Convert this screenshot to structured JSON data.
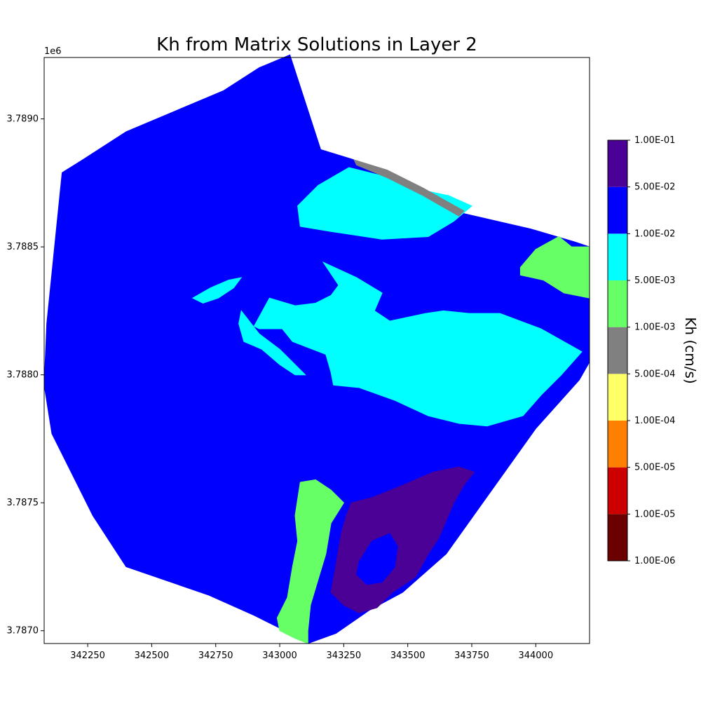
{
  "chart_data": {
    "type": "heatmap",
    "title": "Kh from Matrix Solutions in Layer 2",
    "xlabel": "",
    "ylabel": "",
    "y_offset_label": "1e6",
    "xlim": [
      342080,
      344210
    ],
    "ylim": [
      3786950,
      3789240
    ],
    "x_ticks": [
      342250,
      342500,
      342750,
      343000,
      343250,
      343500,
      343750,
      344000
    ],
    "x_tick_labels": [
      "342250",
      "342500",
      "342750",
      "343000",
      "343250",
      "343500",
      "343750",
      "344000"
    ],
    "y_ticks": [
      3787000,
      3787500,
      3788000,
      3788500,
      3789000
    ],
    "y_tick_labels": [
      "3.7870",
      "3.7875",
      "3.7880",
      "3.7885",
      "3.7890"
    ],
    "colorbar": {
      "label": "Kh (cm/s)",
      "boundaries": [
        "1.00E-06",
        "1.00E-05",
        "5.00E-05",
        "1.00E-04",
        "5.00E-04",
        "1.00E-03",
        "5.00E-03",
        "1.00E-02",
        "5.00E-02",
        "1.00E-01"
      ],
      "colors": [
        "#6b0000",
        "#cc0000",
        "#ff8000",
        "#ffff66",
        "#808080",
        "#66ff66",
        "#00ffff",
        "#0000ff",
        "#4b0096"
      ]
    },
    "zones": [
      {
        "class": "1.00E-02 to 5.00E-02",
        "color": "#0000ff",
        "polygon": [
          [
            342230,
            3788840
          ],
          [
            342400,
            3788950
          ],
          [
            342590,
            3789030
          ],
          [
            342780,
            3789110
          ],
          [
            342920,
            3789200
          ],
          [
            343040,
            3789250
          ],
          [
            343160,
            3788880
          ],
          [
            343290,
            3788840
          ],
          [
            343560,
            3788700
          ],
          [
            343720,
            3788630
          ],
          [
            343980,
            3788570
          ],
          [
            344150,
            3788520
          ],
          [
            344210,
            3788500
          ],
          [
            344210,
            3788050
          ],
          [
            344170,
            3787980
          ],
          [
            344000,
            3787790
          ],
          [
            343800,
            3787510
          ],
          [
            343650,
            3787300
          ],
          [
            343480,
            3787150
          ],
          [
            343350,
            3787080
          ],
          [
            343220,
            3786990
          ],
          [
            343110,
            3786950
          ],
          [
            343020,
            3787000
          ],
          [
            342900,
            3787060
          ],
          [
            342720,
            3787140
          ],
          [
            342400,
            3787250
          ],
          [
            342270,
            3787450
          ],
          [
            342110,
            3787770
          ],
          [
            342080,
            3787960
          ],
          [
            342090,
            3788200
          ],
          [
            342150,
            3788790
          ]
        ]
      },
      {
        "class": "5.00E-03 to 1.00E-02",
        "color": "#00ffff",
        "polygon": [
          [
            343070,
            3788660
          ],
          [
            343150,
            3788740
          ],
          [
            343270,
            3788810
          ],
          [
            343390,
            3788780
          ],
          [
            343520,
            3788730
          ],
          [
            343660,
            3788700
          ],
          [
            343750,
            3788660
          ],
          [
            343680,
            3788600
          ],
          [
            343580,
            3788540
          ],
          [
            343400,
            3788530
          ],
          [
            343200,
            3788560
          ],
          [
            343080,
            3788580
          ]
        ]
      },
      {
        "class": "5.00E-03 to 1.00E-02",
        "color": "#00ffff",
        "polygon": [
          [
            343170,
            3788440
          ],
          [
            343300,
            3788380
          ],
          [
            343400,
            3788320
          ],
          [
            343370,
            3788250
          ],
          [
            343430,
            3788210
          ],
          [
            343570,
            3788240
          ],
          [
            343640,
            3788250
          ],
          [
            343740,
            3788240
          ],
          [
            343860,
            3788240
          ],
          [
            344020,
            3788180
          ],
          [
            344180,
            3788090
          ],
          [
            344100,
            3788000
          ],
          [
            344020,
            3787920
          ],
          [
            343950,
            3787840
          ],
          [
            343810,
            3787800
          ],
          [
            343700,
            3787810
          ],
          [
            343580,
            3787840
          ],
          [
            343450,
            3787900
          ],
          [
            343310,
            3787950
          ],
          [
            343210,
            3787960
          ],
          [
            343200,
            3788010
          ],
          [
            343180,
            3788080
          ],
          [
            343050,
            3788130
          ],
          [
            343010,
            3788180
          ],
          [
            342920,
            3788180
          ],
          [
            342900,
            3788190
          ],
          [
            342960,
            3788300
          ],
          [
            343060,
            3788270
          ],
          [
            343140,
            3788280
          ],
          [
            343200,
            3788310
          ],
          [
            343230,
            3788350
          ]
        ]
      },
      {
        "class": "5.00E-03 to 1.00E-02",
        "color": "#00ffff",
        "polygon": [
          [
            342850,
            3788250
          ],
          [
            342920,
            3788160
          ],
          [
            343000,
            3788100
          ],
          [
            343070,
            3788030
          ],
          [
            343100,
            3788000
          ],
          [
            343060,
            3788000
          ],
          [
            343000,
            3788040
          ],
          [
            342930,
            3788100
          ],
          [
            342860,
            3788130
          ],
          [
            342840,
            3788200
          ]
        ]
      },
      {
        "class": "5.00E-03 to 1.00E-02",
        "color": "#00ffff",
        "polygon": [
          [
            342660,
            3788300
          ],
          [
            342700,
            3788280
          ],
          [
            342760,
            3788300
          ],
          [
            342820,
            3788340
          ],
          [
            342850,
            3788380
          ],
          [
            342800,
            3788370
          ],
          [
            342730,
            3788340
          ]
        ]
      },
      {
        "class": "1.00E-03 to 5.00E-03",
        "color": "#66ff66",
        "polygon": [
          [
            343940,
            3788420
          ],
          [
            344000,
            3788490
          ],
          [
            344090,
            3788540
          ],
          [
            344140,
            3788500
          ],
          [
            344210,
            3788500
          ],
          [
            344210,
            3788300
          ],
          [
            344110,
            3788320
          ],
          [
            344030,
            3788370
          ],
          [
            343940,
            3788390
          ]
        ]
      },
      {
        "class": "1.00E-03 to 5.00E-03",
        "color": "#66ff66",
        "polygon": [
          [
            343080,
            3787580
          ],
          [
            343140,
            3787590
          ],
          [
            343200,
            3787550
          ],
          [
            343250,
            3787500
          ],
          [
            343200,
            3787420
          ],
          [
            343180,
            3787300
          ],
          [
            343150,
            3787200
          ],
          [
            343120,
            3787100
          ],
          [
            343110,
            3787000
          ],
          [
            343110,
            3786950
          ],
          [
            343060,
            3786970
          ],
          [
            343000,
            3787000
          ],
          [
            342990,
            3787050
          ],
          [
            343030,
            3787130
          ],
          [
            343050,
            3787250
          ],
          [
            343070,
            3787350
          ],
          [
            343060,
            3787450
          ]
        ]
      },
      {
        "class": "5.00E-02 to 1.00E-01",
        "color": "#4b0096",
        "polygon": [
          [
            343280,
            3787500
          ],
          [
            343360,
            3787520
          ],
          [
            343460,
            3787560
          ],
          [
            343600,
            3787620
          ],
          [
            343700,
            3787640
          ],
          [
            343760,
            3787620
          ],
          [
            343720,
            3787570
          ],
          [
            343680,
            3787500
          ],
          [
            343650,
            3787430
          ],
          [
            343620,
            3787360
          ],
          [
            343580,
            3787300
          ],
          [
            343530,
            3787210
          ],
          [
            343440,
            3787150
          ],
          [
            343380,
            3787090
          ],
          [
            343310,
            3787070
          ],
          [
            343250,
            3787100
          ],
          [
            343200,
            3787150
          ],
          [
            343220,
            3787260
          ],
          [
            343240,
            3787380
          ],
          [
            343260,
            3787450
          ]
        ]
      },
      {
        "class": "1.00E-02 to 5.00E-02",
        "color": "#0000ff",
        "polygon": [
          [
            343310,
            3787270
          ],
          [
            343360,
            3787350
          ],
          [
            343430,
            3787380
          ],
          [
            343460,
            3787330
          ],
          [
            343450,
            3787250
          ],
          [
            343400,
            3787190
          ],
          [
            343340,
            3787180
          ],
          [
            343300,
            3787220
          ]
        ]
      },
      {
        "class": "1.00E-03 to 5.00E-04",
        "color": "#808080",
        "polygon": [
          [
            343290,
            3788840
          ],
          [
            343420,
            3788800
          ],
          [
            343560,
            3788730
          ],
          [
            343720,
            3788640
          ],
          [
            343700,
            3788620
          ],
          [
            343560,
            3788700
          ],
          [
            343420,
            3788770
          ],
          [
            343300,
            3788820
          ]
        ]
      }
    ]
  }
}
